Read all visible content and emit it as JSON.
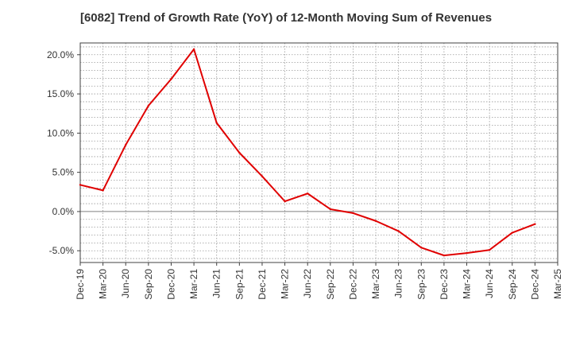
{
  "chart_data": {
    "type": "line",
    "title": "[6082]  Trend of Growth Rate (YoY) of 12-Month Moving Sum of Revenues",
    "xlabel": "",
    "ylabel": "",
    "x_tick_labels": [
      "Dec-19",
      "Mar-20",
      "Jun-20",
      "Sep-20",
      "Dec-20",
      "Mar-21",
      "Jun-21",
      "Sep-21",
      "Dec-21",
      "Mar-22",
      "Jun-22",
      "Sep-22",
      "Dec-22",
      "Mar-23",
      "Jun-23",
      "Sep-23",
      "Dec-23",
      "Mar-24",
      "Jun-24",
      "Sep-24",
      "Dec-24",
      "Mar-25"
    ],
    "y_ticks": [
      -5,
      0,
      5,
      10,
      15,
      20
    ],
    "y_tick_labels": [
      "-5.0%",
      "0.0%",
      "5.0%",
      "10.0%",
      "15.0%",
      "20.0%"
    ],
    "ylim": [
      -6.5,
      21.5
    ],
    "grid": true,
    "line_color": "#e00000",
    "series": [
      {
        "x": [
          "Dec-19",
          "Mar-20",
          "Jun-20",
          "Sep-20",
          "Dec-20",
          "Mar-21",
          "Jun-21",
          "Sep-21",
          "Dec-21",
          "Mar-22",
          "Jun-22",
          "Sep-22",
          "Dec-22",
          "Mar-23",
          "Jun-23",
          "Sep-23",
          "Dec-23",
          "Mar-24",
          "Jun-24",
          "Sep-24",
          "Dec-24"
        ],
        "values": [
          3.4,
          2.7,
          8.5,
          13.5,
          16.9,
          20.7,
          11.3,
          7.5,
          4.5,
          1.3,
          2.3,
          0.3,
          -0.2,
          -1.2,
          -2.5,
          -4.6,
          -5.6,
          -5.3,
          -4.9,
          -2.7,
          -1.6
        ]
      }
    ]
  }
}
